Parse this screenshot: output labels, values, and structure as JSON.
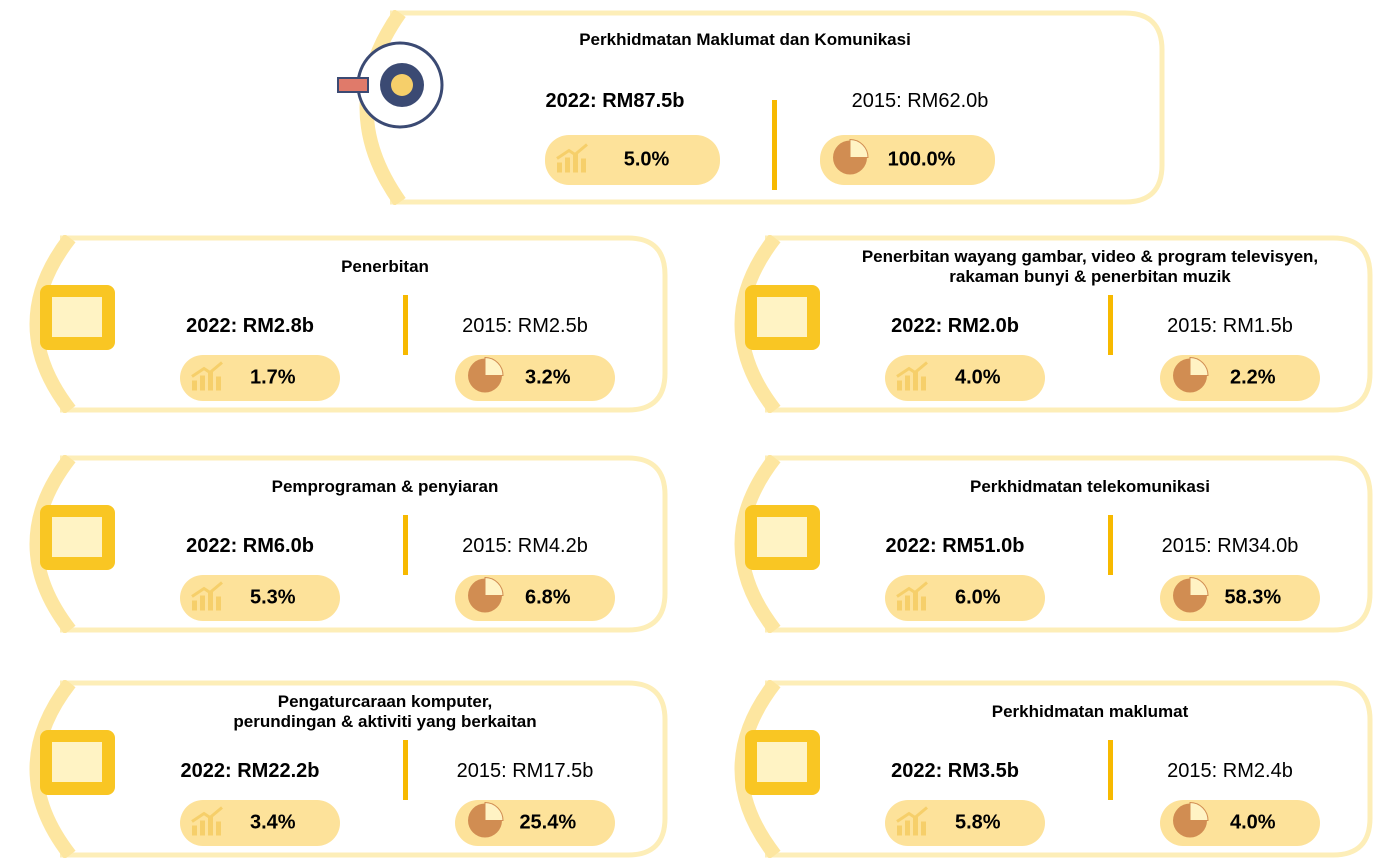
{
  "main": {
    "title": [
      "Perkhidmatan Maklumat dan Komunikasi"
    ],
    "value_2022": "2022: RM87.5b",
    "growth": "5.0%",
    "value_2015": "2015: RM62.0b",
    "share": "100.0%"
  },
  "cards": [
    {
      "title": [
        "Penerbitan"
      ],
      "value_2022": "2022: RM2.8b",
      "growth": "1.7%",
      "value_2015": "2015: RM2.5b",
      "share": "3.2%"
    },
    {
      "title": [
        "Penerbitan wayang gambar, video & program televisyen,",
        "rakaman bunyi & penerbitan muzik"
      ],
      "value_2022": "2022: RM2.0b",
      "growth": "4.0%",
      "value_2015": "2015: RM1.5b",
      "share": "2.2%"
    },
    {
      "title": [
        "Pemprograman & penyiaran"
      ],
      "value_2022": "2022: RM6.0b",
      "growth": "5.3%",
      "value_2015": "2015: RM4.2b",
      "share": "6.8%"
    },
    {
      "title": [
        "Perkhidmatan telekomunikasi"
      ],
      "value_2022": "2022: RM51.0b",
      "growth": "6.0%",
      "value_2015": "2015: RM34.0b",
      "share": "58.3%"
    },
    {
      "title": [
        "Pengaturcaraan komputer,",
        "perundingan & aktiviti yang berkaitan"
      ],
      "value_2022": "2022: RM22.2b",
      "growth": "3.4%",
      "value_2015": "2015: RM17.5b",
      "share": "25.4%"
    },
    {
      "title": [
        "Perkhidmatan maklumat"
      ],
      "value_2022": "2022: RM3.5b",
      "growth": "5.8%",
      "value_2015": "2015: RM2.4b",
      "share": "4.0%"
    }
  ]
}
